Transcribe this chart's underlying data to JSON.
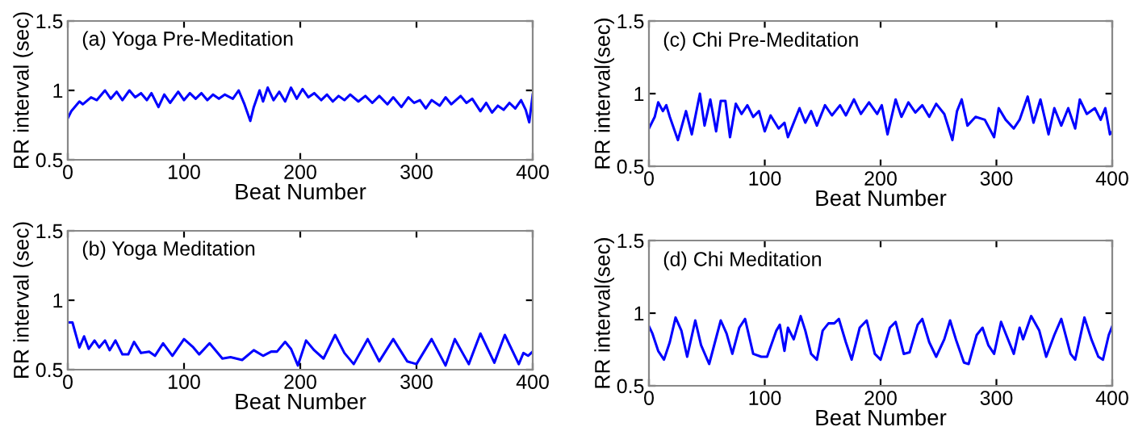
{
  "chart_data": [
    {
      "type": "line",
      "title": "(a) Yoga Pre-Meditation",
      "xlabel": "Beat Number",
      "ylabel": "RR interval (sec)",
      "xlim": [
        0,
        400
      ],
      "ylim": [
        0.5,
        1.5
      ],
      "xticks": [
        0,
        100,
        200,
        300,
        400
      ],
      "yticks": [
        0.5,
        1,
        1.5
      ],
      "series": [
        {
          "color": "#0000ff",
          "x": [
            0,
            3,
            10,
            13,
            20,
            25,
            32,
            37,
            42,
            47,
            53,
            58,
            63,
            68,
            72,
            78,
            83,
            88,
            95,
            100,
            105,
            110,
            115,
            120,
            125,
            130,
            135,
            142,
            147,
            152,
            157,
            160,
            165,
            168,
            172,
            177,
            182,
            187,
            192,
            197,
            202,
            207,
            212,
            218,
            223,
            228,
            233,
            238,
            243,
            250,
            256,
            262,
            268,
            275,
            280,
            287,
            293,
            298,
            303,
            308,
            313,
            320,
            325,
            330,
            338,
            343,
            348,
            355,
            360,
            365,
            370,
            375,
            380,
            385,
            390,
            394,
            397,
            400
          ],
          "values": [
            0.8,
            0.85,
            0.92,
            0.9,
            0.95,
            0.93,
            1.0,
            0.94,
            0.99,
            0.93,
            1.0,
            0.95,
            0.98,
            0.93,
            0.98,
            0.88,
            0.97,
            0.91,
            0.99,
            0.93,
            0.98,
            0.94,
            0.98,
            0.93,
            0.97,
            0.94,
            0.97,
            0.94,
            1.0,
            0.9,
            0.78,
            0.88,
            1.0,
            0.92,
            1.02,
            0.93,
            0.99,
            0.92,
            1.02,
            0.94,
            1.01,
            0.95,
            0.98,
            0.93,
            0.97,
            0.92,
            0.96,
            0.93,
            0.97,
            0.92,
            0.96,
            0.91,
            0.96,
            0.9,
            0.95,
            0.88,
            0.95,
            0.91,
            0.93,
            0.87,
            0.93,
            0.89,
            0.95,
            0.9,
            0.96,
            0.91,
            0.94,
            0.85,
            0.91,
            0.84,
            0.89,
            0.86,
            0.91,
            0.87,
            0.93,
            0.86,
            0.77,
            0.97
          ]
        }
      ]
    },
    {
      "type": "line",
      "title": "(c) Chi Pre-Meditation",
      "xlabel": "Beat Number",
      "ylabel": "RR interval(sec)",
      "xlim": [
        0,
        400
      ],
      "ylim": [
        0.5,
        1.5
      ],
      "xticks": [
        0,
        100,
        200,
        300,
        400
      ],
      "yticks": [
        0.5,
        1,
        1.5
      ],
      "series": [
        {
          "color": "#0000ff",
          "x": [
            0,
            5,
            8,
            12,
            15,
            18,
            25,
            32,
            37,
            44,
            48,
            53,
            58,
            62,
            66,
            70,
            75,
            80,
            85,
            90,
            95,
            100,
            105,
            112,
            117,
            120,
            124,
            130,
            135,
            140,
            145,
            152,
            158,
            165,
            170,
            177,
            183,
            190,
            197,
            201,
            206,
            213,
            218,
            224,
            230,
            236,
            242,
            248,
            255,
            262,
            266,
            270,
            275,
            282,
            290,
            298,
            302,
            308,
            315,
            320,
            327,
            332,
            338,
            345,
            350,
            356,
            362,
            368,
            372,
            378,
            385,
            390,
            394,
            398,
            400
          ],
          "values": [
            0.76,
            0.84,
            0.94,
            0.88,
            0.92,
            0.84,
            0.68,
            0.88,
            0.72,
            1.0,
            0.78,
            0.96,
            0.74,
            0.95,
            0.95,
            0.7,
            0.93,
            0.86,
            0.92,
            0.84,
            0.88,
            0.74,
            0.85,
            0.76,
            0.8,
            0.7,
            0.78,
            0.9,
            0.8,
            0.88,
            0.78,
            0.92,
            0.85,
            0.92,
            0.85,
            0.96,
            0.86,
            0.94,
            0.86,
            0.92,
            0.72,
            0.96,
            0.84,
            0.94,
            0.87,
            0.92,
            0.84,
            0.93,
            0.86,
            0.68,
            0.88,
            0.96,
            0.78,
            0.84,
            0.82,
            0.7,
            0.9,
            0.82,
            0.76,
            0.82,
            0.98,
            0.8,
            0.96,
            0.72,
            0.9,
            0.78,
            0.9,
            0.76,
            0.96,
            0.86,
            0.9,
            0.82,
            0.9,
            0.72,
            0.74
          ]
        }
      ]
    },
    {
      "type": "line",
      "title": "(b) Yoga Meditation",
      "xlabel": "Beat Number",
      "ylabel": "RR interval (sec)",
      "xlim": [
        0,
        400
      ],
      "ylim": [
        0.5,
        1.5
      ],
      "xticks": [
        0,
        100,
        200,
        300,
        400
      ],
      "yticks": [
        0.5,
        1,
        1.5
      ],
      "series": [
        {
          "color": "#0000ff",
          "x": [
            0,
            4,
            8,
            10,
            14,
            18,
            23,
            27,
            32,
            36,
            41,
            47,
            52,
            57,
            63,
            70,
            75,
            82,
            90,
            100,
            108,
            113,
            122,
            133,
            140,
            150,
            160,
            168,
            175,
            180,
            187,
            192,
            198,
            205,
            212,
            220,
            230,
            238,
            246,
            258,
            268,
            280,
            292,
            300,
            313,
            325,
            333,
            345,
            355,
            367,
            376,
            388,
            392,
            396,
            400
          ],
          "values": [
            0.84,
            0.84,
            0.72,
            0.66,
            0.74,
            0.65,
            0.71,
            0.66,
            0.71,
            0.64,
            0.71,
            0.61,
            0.61,
            0.7,
            0.62,
            0.63,
            0.6,
            0.69,
            0.6,
            0.72,
            0.66,
            0.61,
            0.69,
            0.58,
            0.59,
            0.57,
            0.64,
            0.6,
            0.63,
            0.63,
            0.7,
            0.65,
            0.53,
            0.71,
            0.64,
            0.58,
            0.75,
            0.62,
            0.54,
            0.72,
            0.56,
            0.72,
            0.56,
            0.54,
            0.72,
            0.53,
            0.72,
            0.54,
            0.76,
            0.55,
            0.75,
            0.54,
            0.62,
            0.6,
            0.63
          ]
        }
      ]
    },
    {
      "type": "line",
      "title": "(d) Chi Meditation",
      "xlabel": "Beat Number",
      "ylabel": "RR interval(sec)",
      "xlim": [
        0,
        400
      ],
      "ylim": [
        0.5,
        1.5
      ],
      "xticks": [
        0,
        100,
        200,
        300,
        400
      ],
      "yticks": [
        0.5,
        1,
        1.5
      ],
      "series": [
        {
          "color": "#0000ff",
          "x": [
            0,
            3,
            8,
            13,
            18,
            23,
            28,
            33,
            40,
            45,
            52,
            57,
            62,
            67,
            72,
            78,
            83,
            90,
            97,
            102,
            110,
            113,
            117,
            120,
            125,
            131,
            135,
            140,
            145,
            150,
            155,
            160,
            164,
            170,
            175,
            182,
            188,
            195,
            200,
            208,
            213,
            220,
            225,
            232,
            236,
            242,
            248,
            255,
            260,
            265,
            272,
            276,
            283,
            288,
            293,
            298,
            304,
            308,
            315,
            320,
            323,
            330,
            337,
            343,
            350,
            356,
            364,
            368,
            376,
            382,
            388,
            392,
            397,
            400
          ],
          "values": [
            0.91,
            0.86,
            0.74,
            0.68,
            0.8,
            0.97,
            0.88,
            0.7,
            0.95,
            0.78,
            0.65,
            0.8,
            0.95,
            0.86,
            0.72,
            0.9,
            0.96,
            0.72,
            0.7,
            0.7,
            0.88,
            0.92,
            0.74,
            0.9,
            0.82,
            0.98,
            0.88,
            0.72,
            0.68,
            0.88,
            0.93,
            0.93,
            0.96,
            0.8,
            0.68,
            0.9,
            0.95,
            0.72,
            0.68,
            0.9,
            0.94,
            0.72,
            0.73,
            0.92,
            0.96,
            0.8,
            0.7,
            0.82,
            0.95,
            0.82,
            0.66,
            0.65,
            0.85,
            0.9,
            0.78,
            0.72,
            0.94,
            0.86,
            0.72,
            0.9,
            0.82,
            0.98,
            0.88,
            0.7,
            0.85,
            0.96,
            0.72,
            0.68,
            0.97,
            0.82,
            0.7,
            0.68,
            0.85,
            0.91
          ]
        }
      ]
    }
  ]
}
